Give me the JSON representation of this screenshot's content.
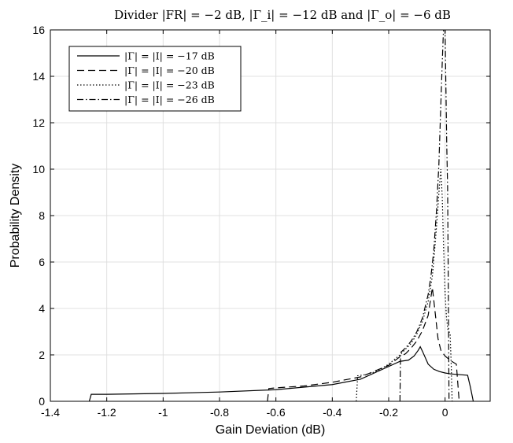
{
  "chart_data": {
    "type": "line",
    "title": "Divider |FR| = −2 dB, |Γ_i| = −12 dB and |Γ_o| = −6 dB",
    "xlabel": "Gain Deviation (dB)",
    "ylabel": "Probability Density",
    "xlim": [
      -1.4,
      0.16
    ],
    "ylim": [
      0,
      16
    ],
    "xticks": [
      -1.4,
      -1.2,
      -1,
      -0.8,
      -0.6,
      -0.4,
      -0.2,
      0
    ],
    "xtick_labels": [
      "-1.4",
      "-1.2",
      "-1",
      "-0.8",
      "-0.6",
      "-0.4",
      "-0.2",
      "0"
    ],
    "yticks": [
      0,
      2,
      4,
      6,
      8,
      10,
      12,
      14,
      16
    ],
    "ytick_labels": [
      "0",
      "2",
      "4",
      "6",
      "8",
      "10",
      "12",
      "14",
      "16"
    ],
    "grid": true,
    "legend_position": "top-left",
    "series": [
      {
        "name": "|Γ| = |I| = −17 dB",
        "style": "solid",
        "x": [
          -1.262,
          -1.255,
          -1.2,
          -1.0,
          -0.8,
          -0.6,
          -0.4,
          -0.3,
          -0.2,
          -0.16,
          -0.13,
          -0.11,
          -0.095,
          -0.088,
          -0.08,
          -0.06,
          -0.04,
          -0.02,
          0.0,
          0.02,
          0.05,
          0.08,
          0.09,
          0.1
        ],
        "y": [
          0.0,
          0.3,
          0.3,
          0.34,
          0.4,
          0.5,
          0.72,
          0.95,
          1.5,
          1.72,
          1.77,
          1.95,
          2.2,
          2.35,
          2.15,
          1.6,
          1.38,
          1.28,
          1.22,
          1.18,
          1.15,
          1.12,
          0.6,
          0.0
        ]
      },
      {
        "name": "|Γ| = |I| = −20 dB",
        "style": "dashed",
        "x": [
          -0.63,
          -0.625,
          -0.6,
          -0.5,
          -0.4,
          -0.3,
          -0.2,
          -0.16,
          -0.14,
          -0.12,
          -0.1,
          -0.08,
          -0.06,
          -0.045,
          -0.035,
          -0.025,
          -0.015,
          0.0,
          0.02,
          0.04,
          0.045,
          0.05
        ],
        "y": [
          0.0,
          0.55,
          0.58,
          0.66,
          0.82,
          1.05,
          1.55,
          1.92,
          2.05,
          2.3,
          2.6,
          3.05,
          3.7,
          4.9,
          3.8,
          2.7,
          2.2,
          1.95,
          1.75,
          1.6,
          0.8,
          0.0
        ]
      },
      {
        "name": "|Γ| = |I| = −23 dB",
        "style": "dotted",
        "x": [
          -0.315,
          -0.31,
          -0.28,
          -0.24,
          -0.2,
          -0.16,
          -0.12,
          -0.1,
          -0.08,
          -0.06,
          -0.045,
          -0.035,
          -0.028,
          -0.02,
          -0.015,
          -0.01,
          -0.005,
          0.0,
          0.005,
          0.01,
          0.018,
          0.022,
          0.025
        ],
        "y": [
          0.0,
          1.1,
          1.15,
          1.3,
          1.6,
          2.0,
          2.5,
          2.9,
          3.45,
          4.3,
          5.4,
          6.8,
          7.9,
          9.3,
          10.0,
          8.8,
          6.5,
          4.7,
          3.6,
          3.1,
          2.9,
          1.5,
          0.0
        ]
      },
      {
        "name": "|Γ| = |I| = −26 dB",
        "style": "dashdot",
        "x": [
          -0.16,
          -0.158,
          -0.14,
          -0.12,
          -0.1,
          -0.08,
          -0.06,
          -0.05,
          -0.04,
          -0.03,
          -0.022,
          -0.015,
          -0.01,
          -0.006,
          -0.003,
          0.0,
          0.003,
          0.006,
          0.009,
          0.012,
          0.014
        ],
        "y": [
          0.0,
          2.1,
          2.3,
          2.6,
          3.0,
          3.6,
          4.6,
          5.4,
          6.5,
          8.3,
          10.2,
          12.8,
          14.6,
          15.9,
          16.3,
          16.0,
          13.5,
          11.0,
          9.2,
          4.0,
          0.0
        ]
      }
    ]
  }
}
